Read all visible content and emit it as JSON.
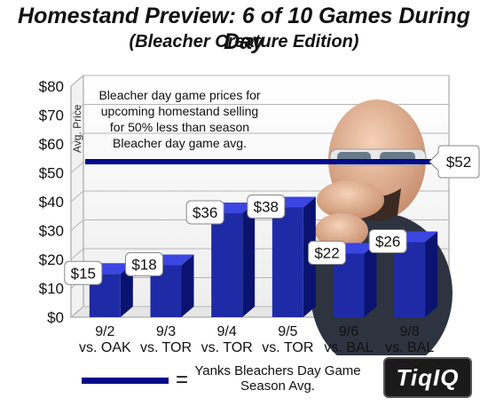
{
  "title": "Homestand Preview: 6 of 10 Games During Day",
  "subtitle": "(Bleacher Creature Edition)",
  "annotation": "Bleacher day game prices for upcoming homestand selling for 50% less than season Bleacher day game avg.",
  "legend": {
    "equals": "=",
    "label": "Yanks Bleachers Day Game Season Avg."
  },
  "logo_text": "TiqIQ",
  "chart_data": {
    "type": "bar",
    "title": "Homestand Preview: 6 of 10 Games During Day",
    "subtitle": "(Bleacher Creature Edition)",
    "ylabel": "Avg. Price",
    "xlabel": "",
    "ylim": [
      0,
      80
    ],
    "y_ticks": [
      "$0",
      "$10",
      "$20",
      "$30",
      "$40",
      "$50",
      "$60",
      "$70",
      "$80"
    ],
    "categories": [
      [
        "9/2",
        "vs. OAK"
      ],
      [
        "9/3",
        "vs. TOR"
      ],
      [
        "9/4",
        "vs. TOR"
      ],
      [
        "9/5",
        "vs. TOR"
      ],
      [
        "9/6",
        "vs. BAL"
      ],
      [
        "9/8",
        "vs. BAL"
      ]
    ],
    "values": [
      15,
      18,
      36,
      38,
      22,
      26
    ],
    "data_labels": [
      "$15",
      "$18",
      "$36",
      "$38",
      "$22",
      "$26"
    ],
    "reference_line": {
      "value": 52,
      "label": "$52"
    },
    "grid": true,
    "colors": {
      "bar_front": "#1f2aa6",
      "bar_top": "#3b46e0",
      "bar_side": "#0a1470",
      "reference": "#000c8a"
    }
  }
}
